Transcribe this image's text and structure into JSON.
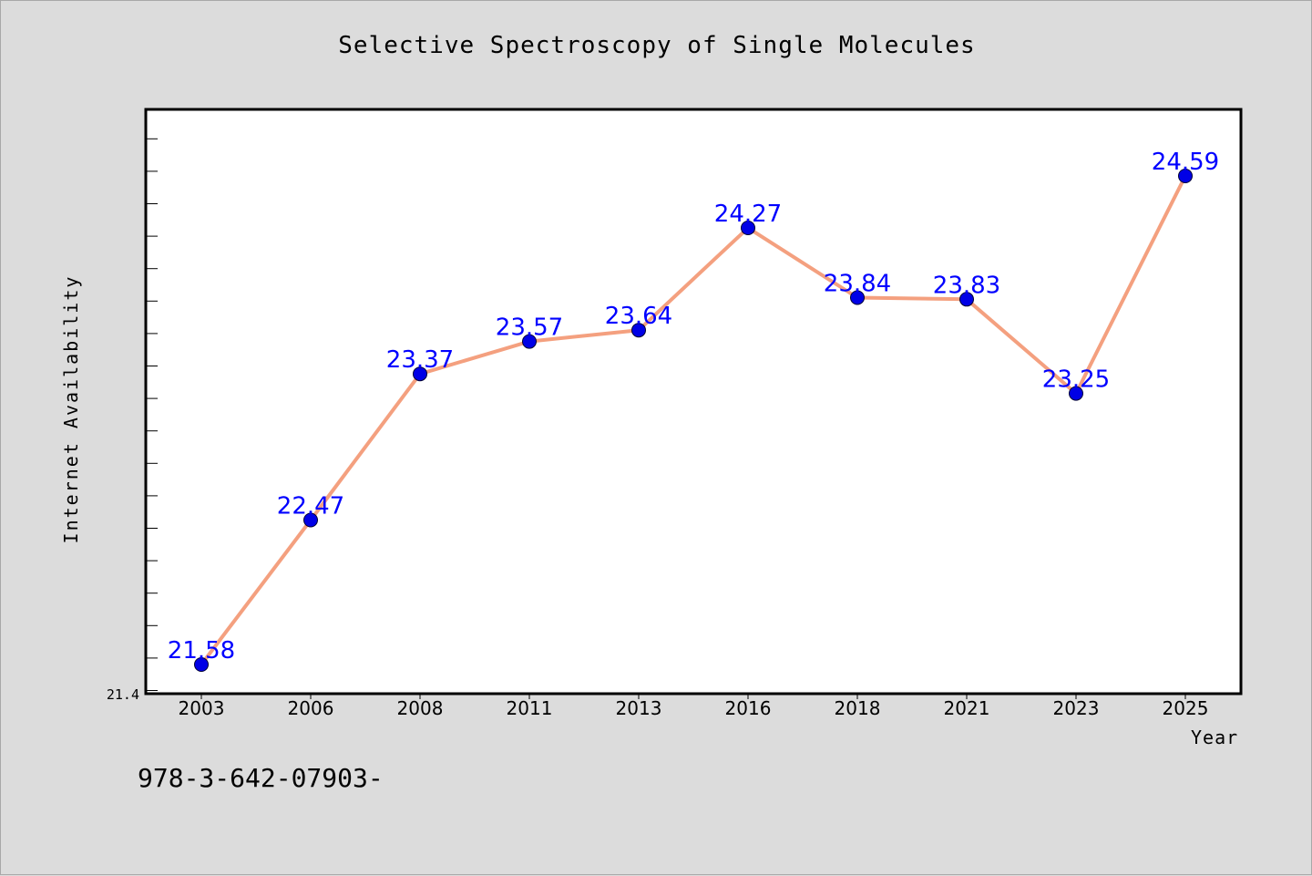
{
  "chart_data": {
    "type": "line",
    "title": "Selective Spectroscopy of Single Molecules",
    "xlabel": "Year",
    "ylabel": "Internet Availability",
    "categories": [
      "2003",
      "2006",
      "2008",
      "2011",
      "2013",
      "2016",
      "2018",
      "2021",
      "2023",
      "2025"
    ],
    "values": [
      21.58,
      22.47,
      23.37,
      23.57,
      23.64,
      24.27,
      23.84,
      23.83,
      23.25,
      24.59
    ],
    "data_labels": [
      "21.58",
      "22.47",
      "23.37",
      "23.57",
      "23.64",
      "24.27",
      "23.84",
      "23.83",
      "23.25",
      "24.59"
    ],
    "y_tick_label": "21.4",
    "ylim": [
      21.4,
      25.0
    ],
    "grid": false,
    "line_color": "#f4a07f",
    "marker_color": "#0000e6",
    "label_color": "#0000ff"
  },
  "footer_text": "978-3-642-07903-"
}
